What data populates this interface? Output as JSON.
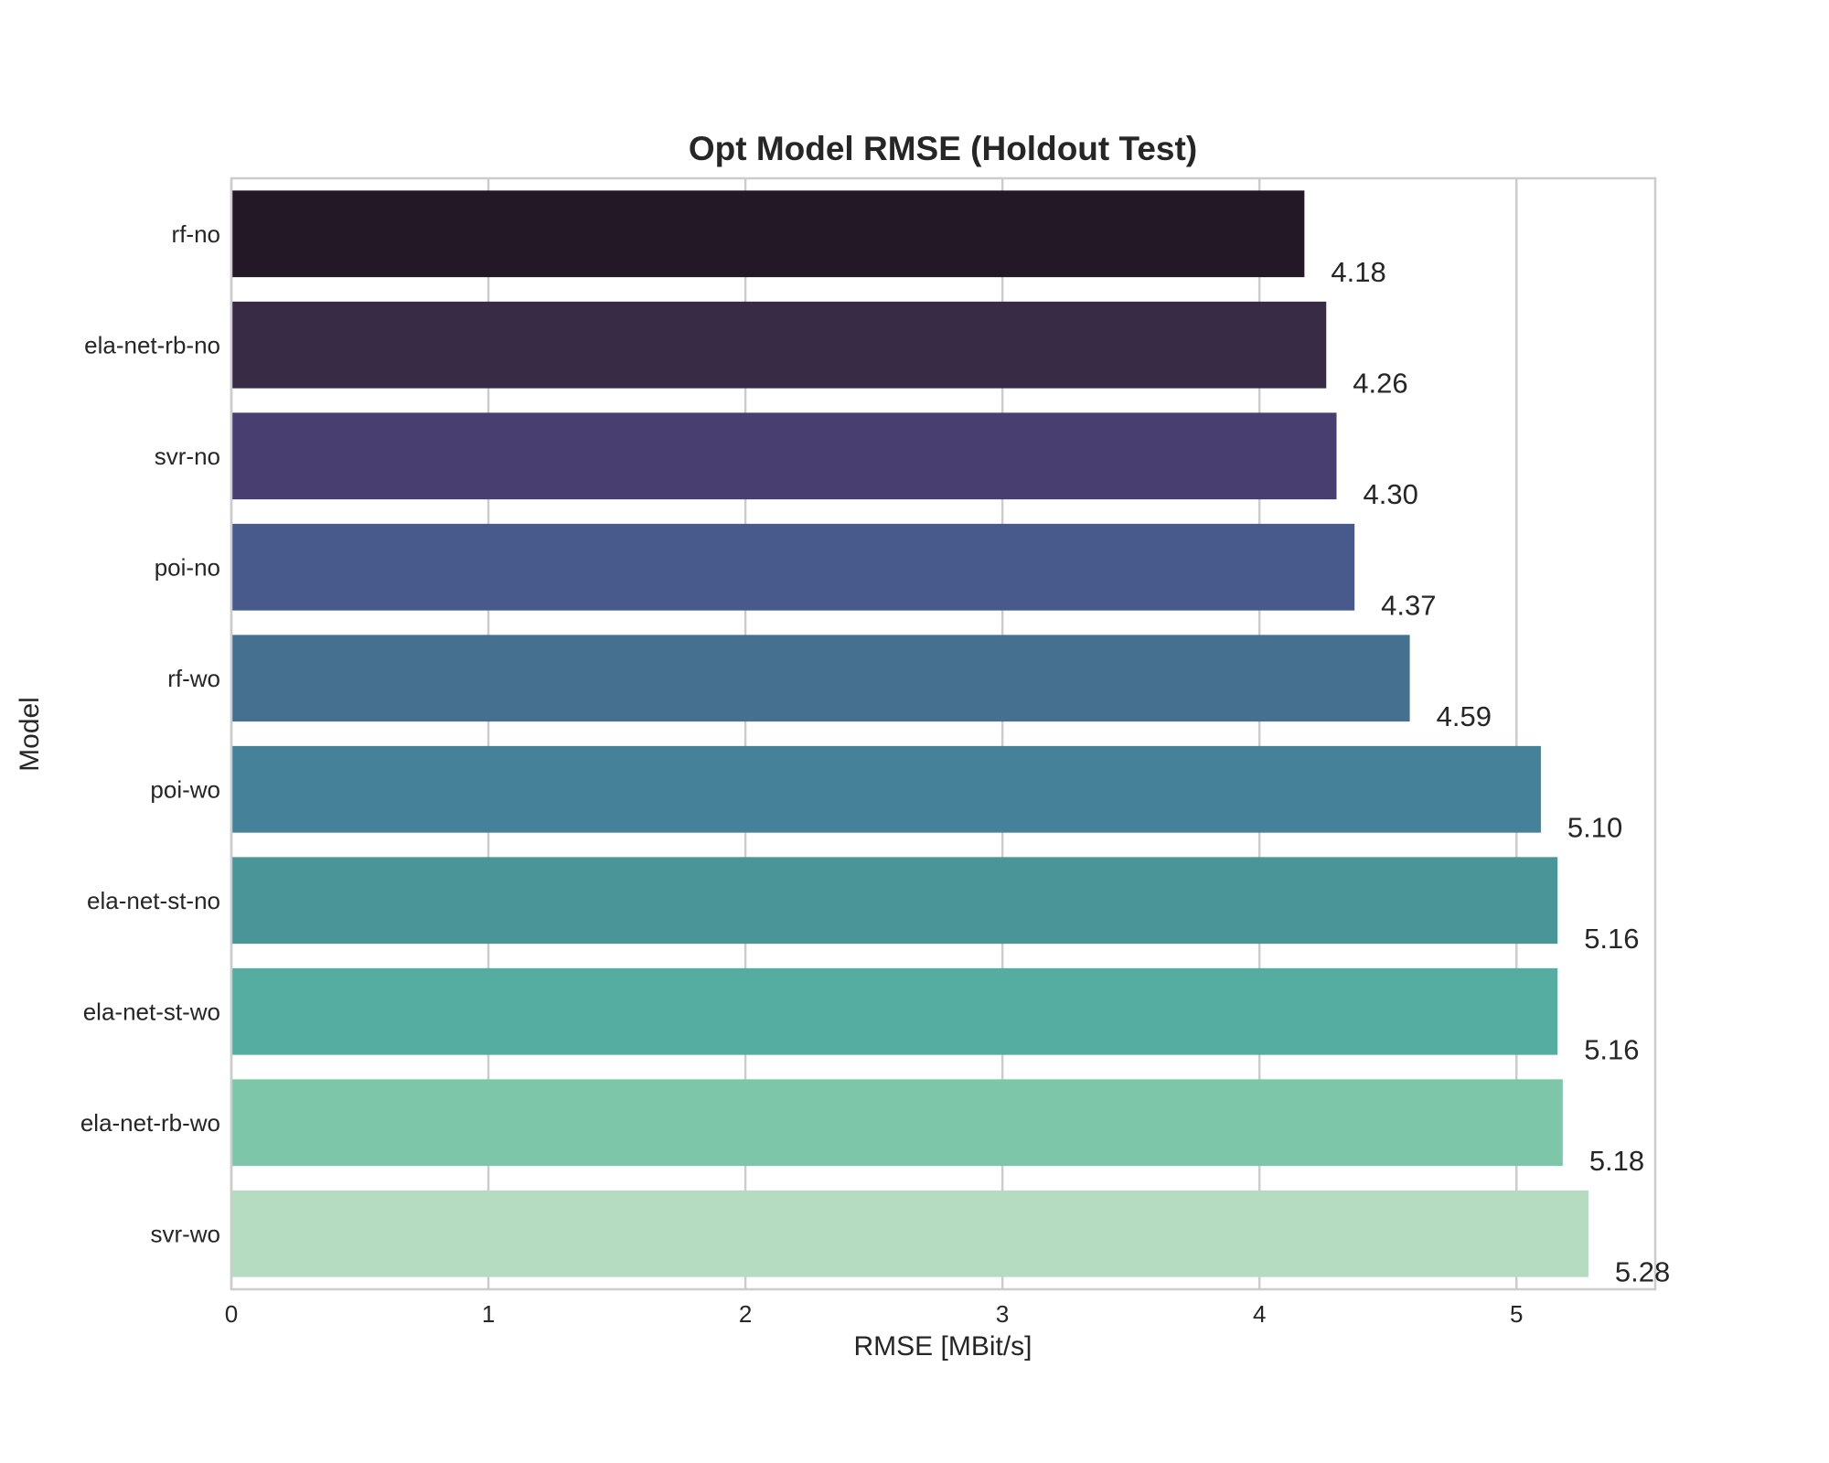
{
  "chart_data": {
    "type": "bar",
    "orientation": "horizontal",
    "title": "Opt Model RMSE (Holdout Test)",
    "xlabel": "RMSE [MBit/s]",
    "ylabel": "Model",
    "xlim": [
      0,
      5.54
    ],
    "xticks": [
      "0",
      "1",
      "2",
      "3",
      "4",
      "5"
    ],
    "grid": true,
    "categories": [
      "rf-no",
      "ela-net-rb-no",
      "svr-no",
      "poi-no",
      "rf-wo",
      "poi-wo",
      "ela-net-st-no",
      "ela-net-st-wo",
      "ela-net-rb-wo",
      "svr-wo"
    ],
    "values": [
      4.175,
      4.26,
      4.3,
      4.37,
      4.585,
      5.095,
      5.16,
      5.16,
      5.18,
      5.28
    ],
    "data_labels": [
      "4.18",
      "4.26",
      "4.30",
      "4.37",
      "4.59",
      "5.10",
      "5.16",
      "5.16",
      "5.18",
      "5.28"
    ],
    "colors": [
      "#231826",
      "#372b46",
      "#483e70",
      "#485a8c",
      "#45708f",
      "#45829a",
      "#499597",
      "#55ada2",
      "#7dc6a9",
      "#b5dcc1"
    ]
  }
}
